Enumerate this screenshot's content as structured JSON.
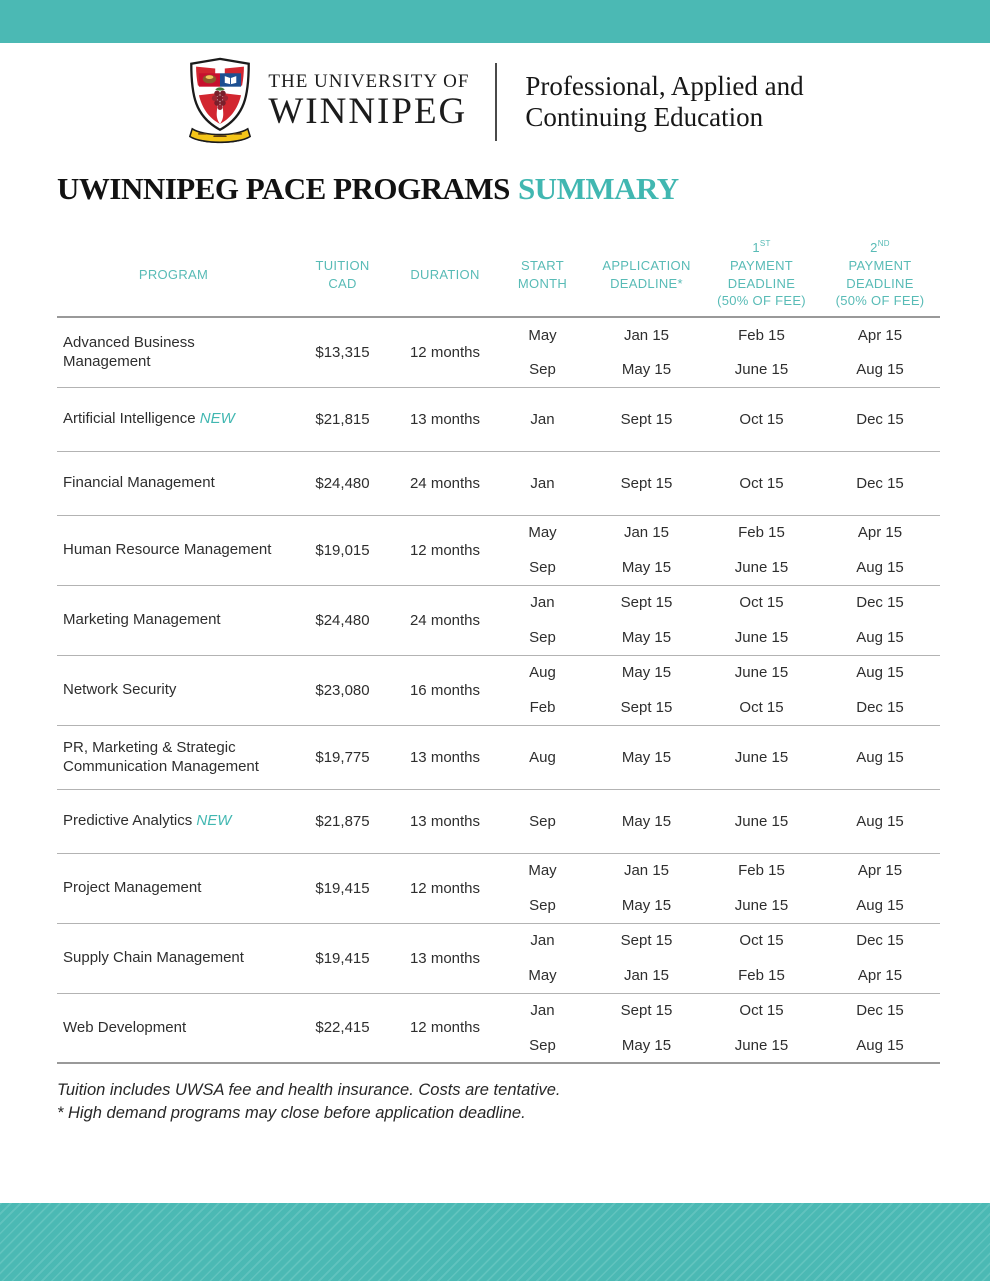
{
  "header": {
    "university_name_line1": "THE UNIVERSITY OF",
    "university_name_line2": "WINNIPEG",
    "division_line1": "Professional, Applied and",
    "division_line2": "Continuing Education"
  },
  "title": {
    "main": "UWINNIPEG PACE PROGRAMS",
    "accent": "SUMMARY"
  },
  "table": {
    "new_label": "NEW",
    "headers": [
      {
        "lines": [
          "PROGRAM"
        ]
      },
      {
        "lines": [
          "TUITION",
          "CAD"
        ]
      },
      {
        "lines": [
          "DURATION"
        ]
      },
      {
        "lines": [
          "START",
          "MONTH"
        ]
      },
      {
        "lines": [
          "APPLICATION",
          "DEADLINE*"
        ]
      },
      {
        "ordinal": "1",
        "ordinal_suffix": "ST",
        "lines": [
          "PAYMENT",
          "DEADLINE",
          "(50% OF FEE)"
        ]
      },
      {
        "ordinal": "2",
        "ordinal_suffix": "ND",
        "lines": [
          "PAYMENT",
          "DEADLINE",
          "(50% OF FEE)"
        ]
      }
    ],
    "rows": [
      {
        "name": "Advanced Business Management",
        "is_new": false,
        "tuition": "$13,315",
        "duration": "12 months",
        "sessions": [
          {
            "start": "May",
            "application": "Jan 15",
            "payment1": "Feb 15",
            "payment2": "Apr 15"
          },
          {
            "start": "Sep",
            "application": "May 15",
            "payment1": "June 15",
            "payment2": "Aug 15"
          }
        ]
      },
      {
        "name": "Artificial Intelligence",
        "is_new": true,
        "tuition": "$21,815",
        "duration": "13 months",
        "sessions": [
          {
            "start": "Jan",
            "application": "Sept 15",
            "payment1": "Oct 15",
            "payment2": "Dec 15"
          }
        ]
      },
      {
        "name": "Financial Management",
        "is_new": false,
        "tuition": "$24,480",
        "duration": "24 months",
        "sessions": [
          {
            "start": "Jan",
            "application": "Sept 15",
            "payment1": "Oct 15",
            "payment2": "Dec 15"
          }
        ]
      },
      {
        "name": "Human Resource Management",
        "is_new": false,
        "tuition": "$19,015",
        "duration": "12 months",
        "sessions": [
          {
            "start": "May",
            "application": "Jan 15",
            "payment1": "Feb 15",
            "payment2": "Apr 15"
          },
          {
            "start": "Sep",
            "application": "May 15",
            "payment1": "June 15",
            "payment2": "Aug 15"
          }
        ]
      },
      {
        "name": "Marketing Management",
        "is_new": false,
        "tuition": "$24,480",
        "duration": "24 months",
        "sessions": [
          {
            "start": "Jan",
            "application": "Sept 15",
            "payment1": "Oct 15",
            "payment2": "Dec 15"
          },
          {
            "start": "Sep",
            "application": "May 15",
            "payment1": "June 15",
            "payment2": "Aug 15"
          }
        ]
      },
      {
        "name": "Network Security",
        "is_new": false,
        "tuition": "$23,080",
        "duration": "16 months",
        "sessions": [
          {
            "start": "Aug",
            "application": "May 15",
            "payment1": "June 15",
            "payment2": "Aug 15"
          },
          {
            "start": "Feb",
            "application": "Sept 15",
            "payment1": "Oct 15",
            "payment2": "Dec 15"
          }
        ]
      },
      {
        "name": "PR, Marketing & Strategic Communication Management",
        "is_new": false,
        "tuition": "$19,775",
        "duration": "13 months",
        "sessions": [
          {
            "start": "Aug",
            "application": "May 15",
            "payment1": "June 15",
            "payment2": "Aug 15"
          }
        ]
      },
      {
        "name": "Predictive Analytics",
        "is_new": true,
        "tuition": "$21,875",
        "duration": "13 months",
        "sessions": [
          {
            "start": "Sep",
            "application": "May 15",
            "payment1": "June 15",
            "payment2": "Aug 15"
          }
        ]
      },
      {
        "name": "Project Management",
        "is_new": false,
        "tuition": "$19,415",
        "duration": "12 months",
        "sessions": [
          {
            "start": "May",
            "application": "Jan 15",
            "payment1": "Feb 15",
            "payment2": "Apr 15"
          },
          {
            "start": "Sep",
            "application": "May 15",
            "payment1": "June 15",
            "payment2": "Aug 15"
          }
        ]
      },
      {
        "name": "Supply Chain Management",
        "is_new": false,
        "tuition": "$19,415",
        "duration": "13 months",
        "sessions": [
          {
            "start": "Jan",
            "application": "Sept 15",
            "payment1": "Oct 15",
            "payment2": "Dec 15"
          },
          {
            "start": "May",
            "application": "Jan 15",
            "payment1": "Feb 15",
            "payment2": "Apr 15"
          }
        ]
      },
      {
        "name": "Web Development",
        "is_new": false,
        "tuition": "$22,415",
        "duration": "12 months",
        "sessions": [
          {
            "start": "Jan",
            "application": "Sept 15",
            "payment1": "Oct 15",
            "payment2": "Dec 15"
          },
          {
            "start": "Sep",
            "application": "May 15",
            "payment1": "June 15",
            "payment2": "Aug 15"
          }
        ]
      }
    ]
  },
  "footnotes": [
    "Tuition includes UWSA fee and health insurance. Costs are tentative.",
    "* High demand programs may close before application deadline."
  ],
  "colors": {
    "accent_teal": "#4bb9b4",
    "accent_text_teal": "#41b7b1",
    "table_header_teal": "#58bbb6",
    "body_text": "#2e2e2e"
  }
}
